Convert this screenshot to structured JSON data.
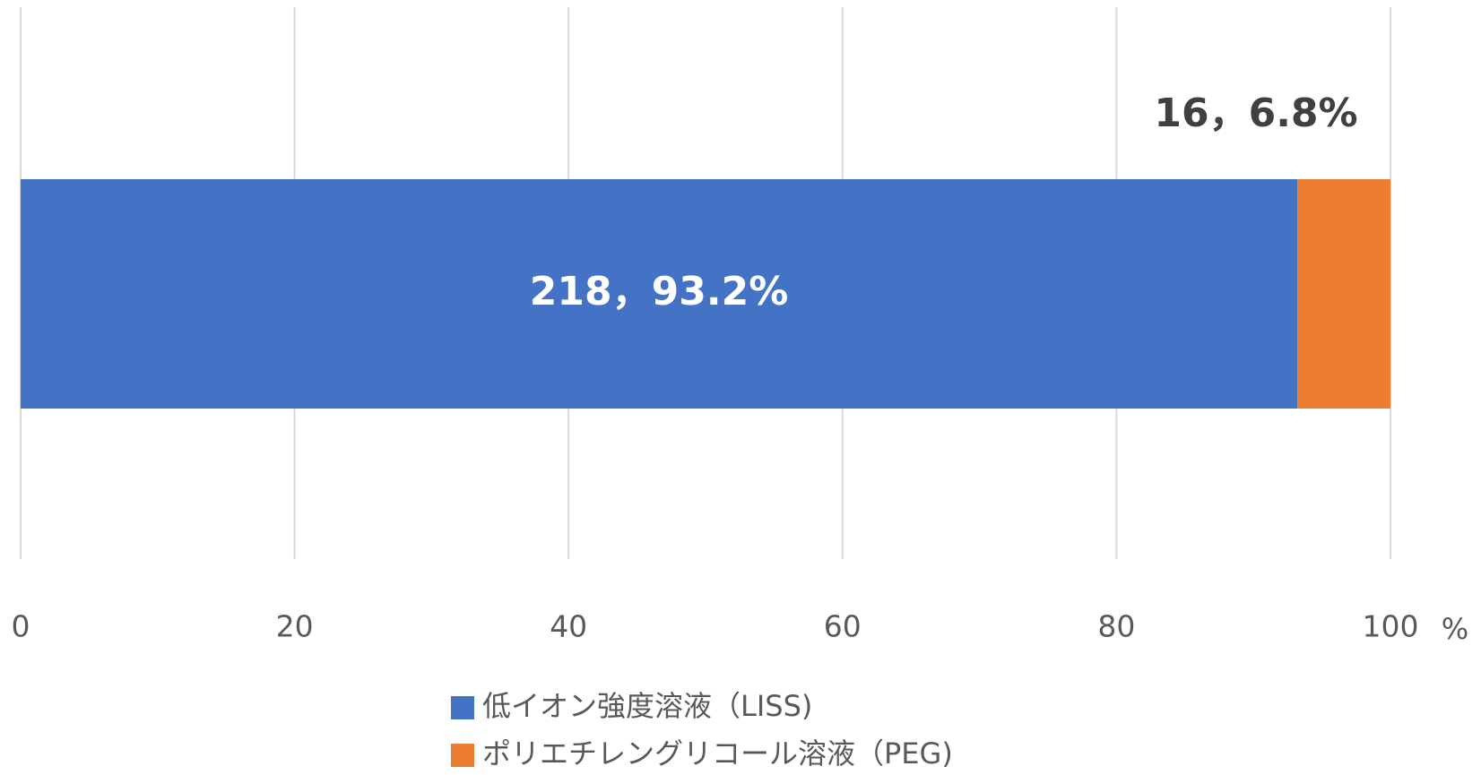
{
  "chart_data": {
    "type": "bar",
    "orientation": "horizontal",
    "stacked": true,
    "categories": [
      null
    ],
    "series": [
      {
        "name": "低イオン強度溶液（LISS)",
        "color": "#4472c4",
        "values": [
          93.2
        ],
        "value_labels": [
          "218，93.2%"
        ]
      },
      {
        "name": "ポリエチレングリコール溶液（PEG)",
        "color": "#ed7d31",
        "values": [
          6.8
        ],
        "value_labels": [
          "16，6.8%"
        ]
      }
    ],
    "xlabel": "%",
    "xlim": [
      0,
      100
    ],
    "xticks": [
      0,
      20,
      40,
      60,
      80,
      100
    ],
    "grid": true,
    "legend": "bottom"
  }
}
